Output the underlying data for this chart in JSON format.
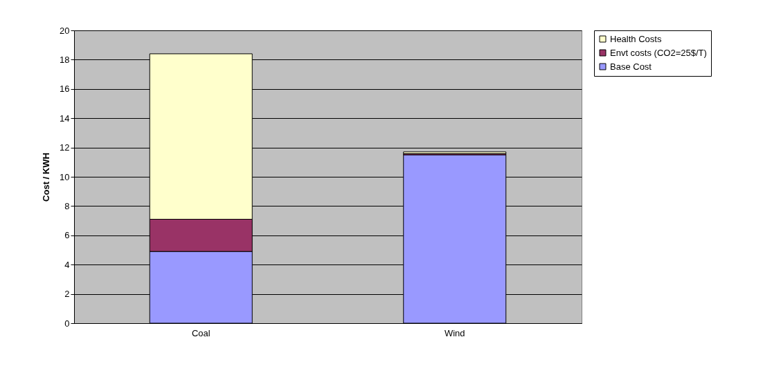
{
  "chart_data": {
    "type": "bar",
    "stacked": true,
    "ylabel": "Cost / KWH",
    "categories": [
      "Coal",
      "Wind"
    ],
    "series": [
      {
        "name": "Base Cost",
        "color": "#9999ff",
        "values": [
          4.9,
          11.5
        ]
      },
      {
        "name": "Envt costs (CO2=25$/T)",
        "color": "#993366",
        "values": [
          2.2,
          0.08
        ]
      },
      {
        "name": "Health Costs",
        "color": "#ffffcc",
        "values": [
          11.3,
          0.12
        ]
      }
    ],
    "ylim": [
      0,
      20
    ],
    "yticks": [
      0,
      2,
      4,
      6,
      8,
      10,
      12,
      14,
      16,
      18,
      20
    ],
    "grid": true,
    "legend": "right"
  }
}
